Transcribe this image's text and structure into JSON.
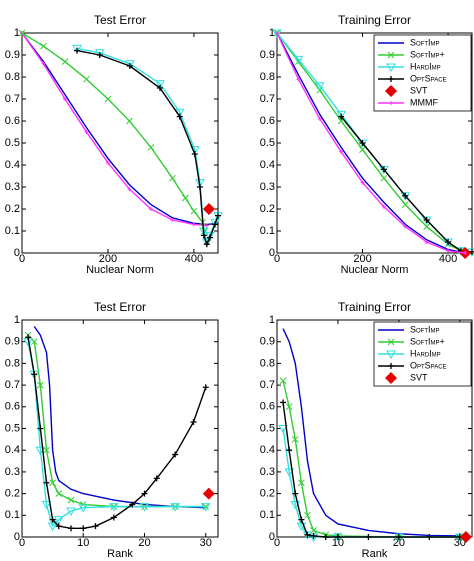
{
  "chart_data": [
    {
      "type": "line",
      "title": "Test Error",
      "xlabel": "Nuclear Norm",
      "xlim": [
        0,
        456
      ],
      "ylim": [
        0,
        1
      ],
      "xticks": [
        0,
        200,
        400
      ],
      "yticks": [
        0,
        0.1,
        0.2,
        0.3,
        0.4,
        0.5,
        0.6,
        0.7,
        0.8,
        0.9,
        1
      ],
      "series": [
        {
          "name": "SoftImp",
          "color": "#0000cc",
          "marker": "none",
          "x": [
            0,
            50,
            100,
            150,
            200,
            250,
            300,
            350,
            400,
            430,
            456
          ],
          "values": [
            1,
            0.87,
            0.72,
            0.57,
            0.43,
            0.31,
            0.22,
            0.16,
            0.135,
            0.13,
            0.135
          ]
        },
        {
          "name": "MMMF",
          "color": "#ff33ff",
          "marker": "dot",
          "x": [
            0,
            50,
            100,
            150,
            200,
            250,
            300,
            350,
            400,
            430
          ],
          "values": [
            1,
            0.86,
            0.7,
            0.55,
            0.41,
            0.29,
            0.2,
            0.15,
            0.13,
            0.125
          ]
        },
        {
          "name": "SoftImp+",
          "color": "#33cc33",
          "marker": "x",
          "x": [
            0,
            50,
            100,
            150,
            200,
            250,
            300,
            350,
            380,
            400,
            420,
            425
          ],
          "values": [
            1,
            0.94,
            0.87,
            0.79,
            0.7,
            0.6,
            0.48,
            0.34,
            0.25,
            0.19,
            0.14,
            0.1
          ]
        },
        {
          "name": "HardImp",
          "color": "#33e0e0",
          "marker": "triangle",
          "x": [
            128,
            181,
            251,
            321,
            367,
            402,
            414,
            423,
            430,
            437,
            449,
            456
          ],
          "values": [
            0.93,
            0.91,
            0.86,
            0.77,
            0.64,
            0.47,
            0.32,
            0.1,
            0.05,
            0.08,
            0.14,
            0.17
          ]
        },
        {
          "name": "OptSpace",
          "color": "#000000",
          "marker": "plus",
          "x": [
            128,
            181,
            251,
            321,
            367,
            402,
            414,
            423,
            430,
            437,
            449,
            456
          ],
          "values": [
            0.92,
            0.9,
            0.85,
            0.75,
            0.62,
            0.45,
            0.3,
            0.08,
            0.04,
            0.07,
            0.13,
            0.17
          ]
        },
        {
          "name": "SVT",
          "color": "#e60000",
          "marker": "diamond",
          "linestyle": "none",
          "x": [
            435
          ],
          "values": [
            0.2
          ]
        }
      ]
    },
    {
      "type": "line",
      "title": "Training Error",
      "xlabel": "Nuclear Norm",
      "xlim": [
        0,
        456
      ],
      "ylim": [
        0,
        1
      ],
      "xticks": [
        0,
        200,
        400
      ],
      "yticks": [
        0,
        0.1,
        0.2,
        0.3,
        0.4,
        0.5,
        0.6,
        0.7,
        0.8,
        0.9,
        1
      ],
      "legend": "upper right",
      "series": [
        {
          "name": "SoftImp",
          "color": "#0000cc",
          "marker": "none",
          "x": [
            0,
            50,
            100,
            150,
            200,
            250,
            300,
            350,
            400,
            440
          ],
          "values": [
            1,
            0.81,
            0.63,
            0.48,
            0.34,
            0.23,
            0.13,
            0.06,
            0.016,
            0
          ]
        },
        {
          "name": "SoftImp+",
          "color": "#33cc33",
          "marker": "x",
          "x": [
            0,
            50,
            100,
            150,
            200,
            250,
            300,
            350,
            400,
            430
          ],
          "values": [
            1,
            0.87,
            0.74,
            0.6,
            0.47,
            0.34,
            0.22,
            0.12,
            0.04,
            0.01
          ]
        },
        {
          "name": "HardImp",
          "color": "#33e0e0",
          "marker": "triangle",
          "x": [
            0,
            50,
            100,
            150,
            200,
            250,
            300,
            350,
            400,
            430,
            456
          ],
          "values": [
            1,
            0.88,
            0.76,
            0.63,
            0.5,
            0.38,
            0.26,
            0.15,
            0.05,
            0.01,
            0.005
          ]
        },
        {
          "name": "OptSpace",
          "color": "#000000",
          "marker": "plus",
          "x": [
            150,
            200,
            250,
            300,
            350,
            400,
            430,
            456
          ],
          "values": [
            0.62,
            0.5,
            0.38,
            0.26,
            0.15,
            0.05,
            0.01,
            0.005
          ]
        },
        {
          "name": "SVT",
          "color": "#e60000",
          "marker": "diamond",
          "linestyle": "none",
          "x": [
            440
          ],
          "values": [
            0
          ]
        },
        {
          "name": "MMMF",
          "color": "#ff33ff",
          "marker": "dot",
          "x": [
            0,
            50,
            100,
            150,
            200,
            250,
            300,
            350,
            400,
            440
          ],
          "values": [
            1,
            0.79,
            0.61,
            0.46,
            0.32,
            0.21,
            0.12,
            0.05,
            0.01,
            0
          ]
        }
      ]
    },
    {
      "type": "line",
      "title": "Test Error",
      "xlabel": "Rank",
      "xlim": [
        0,
        32
      ],
      "ylim": [
        0,
        1
      ],
      "xticks": [
        0,
        10,
        20,
        30
      ],
      "yticks": [
        0,
        0.1,
        0.2,
        0.3,
        0.4,
        0.5,
        0.6,
        0.7,
        0.8,
        0.9,
        1
      ],
      "series": [
        {
          "name": "SoftImp",
          "color": "#0000cc",
          "marker": "none",
          "x": [
            2,
            3,
            4,
            4.5,
            5,
            5.5,
            6,
            8,
            10,
            15,
            20,
            25,
            30
          ],
          "values": [
            0.97,
            0.93,
            0.85,
            0.7,
            0.4,
            0.3,
            0.26,
            0.22,
            0.2,
            0.17,
            0.15,
            0.14,
            0.135
          ]
        },
        {
          "name": "SoftImp+",
          "color": "#33cc33",
          "marker": "x",
          "x": [
            1,
            2,
            3,
            4,
            5,
            6,
            8,
            10,
            15,
            20,
            25,
            30
          ],
          "values": [
            0.93,
            0.9,
            0.7,
            0.4,
            0.25,
            0.2,
            0.17,
            0.15,
            0.14,
            0.14,
            0.14,
            0.14
          ]
        },
        {
          "name": "HardImp",
          "color": "#33e0e0",
          "marker": "triangle",
          "x": [
            1,
            2,
            3,
            4,
            5,
            6,
            8,
            10,
            15,
            20,
            25,
            30
          ],
          "values": [
            0.9,
            0.75,
            0.4,
            0.15,
            0.05,
            0.08,
            0.12,
            0.135,
            0.14,
            0.14,
            0.14,
            0.14
          ]
        },
        {
          "name": "OptSpace",
          "color": "#000000",
          "marker": "plus",
          "x": [
            1,
            2,
            3,
            4,
            5,
            6,
            8,
            10,
            12,
            15,
            18,
            20,
            22,
            25,
            28,
            30
          ],
          "values": [
            0.92,
            0.75,
            0.5,
            0.25,
            0.08,
            0.05,
            0.04,
            0.04,
            0.05,
            0.09,
            0.15,
            0.2,
            0.27,
            0.38,
            0.53,
            0.69
          ]
        },
        {
          "name": "SVT",
          "color": "#e60000",
          "marker": "diamond",
          "linestyle": "none",
          "x": [
            30.5
          ],
          "values": [
            0.2
          ]
        }
      ]
    },
    {
      "type": "line",
      "title": "Training Error",
      "xlabel": "Rank",
      "xlim": [
        0,
        32
      ],
      "ylim": [
        0,
        1
      ],
      "xticks": [
        0,
        10,
        20,
        30
      ],
      "yticks": [
        0,
        0.1,
        0.2,
        0.3,
        0.4,
        0.5,
        0.6,
        0.7,
        0.8,
        0.9,
        1
      ],
      "legend": "upper right",
      "series": [
        {
          "name": "SoftImp",
          "color": "#0000cc",
          "marker": "none",
          "x": [
            1,
            2,
            3,
            4,
            5,
            6,
            8,
            10,
            15,
            20,
            25,
            30
          ],
          "values": [
            0.96,
            0.9,
            0.8,
            0.6,
            0.35,
            0.2,
            0.1,
            0.06,
            0.03,
            0.015,
            0.007,
            0.005
          ]
        },
        {
          "name": "SoftImp+",
          "color": "#33cc33",
          "marker": "x",
          "x": [
            1,
            2,
            3,
            4,
            5,
            6,
            8,
            10,
            20,
            30
          ],
          "values": [
            0.72,
            0.6,
            0.45,
            0.25,
            0.1,
            0.03,
            0.01,
            0.005,
            0,
            0
          ]
        },
        {
          "name": "HardImp",
          "color": "#33e0e0",
          "marker": "triangle",
          "x": [
            1,
            2,
            3,
            4,
            5,
            6,
            10,
            20,
            30
          ],
          "values": [
            0.5,
            0.3,
            0.15,
            0.05,
            0.01,
            0,
            0,
            0,
            0
          ]
        },
        {
          "name": "OptSpace",
          "color": "#000000",
          "marker": "plus",
          "x": [
            1,
            2,
            3,
            4,
            5,
            6,
            8,
            10,
            15,
            20,
            25,
            30
          ],
          "values": [
            0.62,
            0.4,
            0.2,
            0.08,
            0.01,
            0.005,
            0,
            0,
            0,
            0,
            0,
            0
          ]
        },
        {
          "name": "SVT",
          "color": "#e60000",
          "marker": "diamond",
          "linestyle": "none",
          "x": [
            31
          ],
          "values": [
            0
          ]
        }
      ]
    }
  ]
}
